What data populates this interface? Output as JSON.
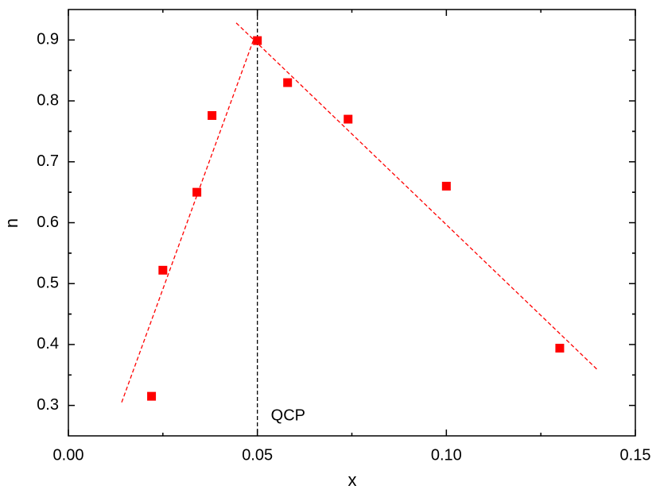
{
  "chart_data": {
    "type": "scatter",
    "x": [
      0.022,
      0.025,
      0.034,
      0.038,
      0.05,
      0.058,
      0.074,
      0.1,
      0.13
    ],
    "values": [
      0.315,
      0.522,
      0.65,
      0.776,
      0.899,
      0.83,
      0.77,
      0.66,
      0.394
    ],
    "color": "#ff0000",
    "fit_lines": [
      {
        "x": [
          0.0141,
          0.0492
        ],
        "y": [
          0.305,
          0.904
        ],
        "color": "#ff0000"
      },
      {
        "x": [
          0.0444,
          0.1399
        ],
        "y": [
          0.928,
          0.359
        ],
        "color": "#ff0000"
      }
    ],
    "vlines": [
      0.05
    ],
    "annotation": "QCP",
    "xlabel": "x",
    "ylabel": "n",
    "xlim": [
      0,
      0.15
    ],
    "ylim": [
      0.25,
      0.95
    ],
    "xticks": [
      {
        "value": 0,
        "label": "0.00"
      },
      {
        "value": 0.05,
        "label": "0.05"
      },
      {
        "value": 0.1,
        "label": "0.10"
      },
      {
        "value": 0.15,
        "label": "0.15"
      }
    ],
    "yticks": [
      0.3,
      0.4,
      0.5,
      0.6,
      0.7,
      0.8,
      0.9
    ]
  }
}
